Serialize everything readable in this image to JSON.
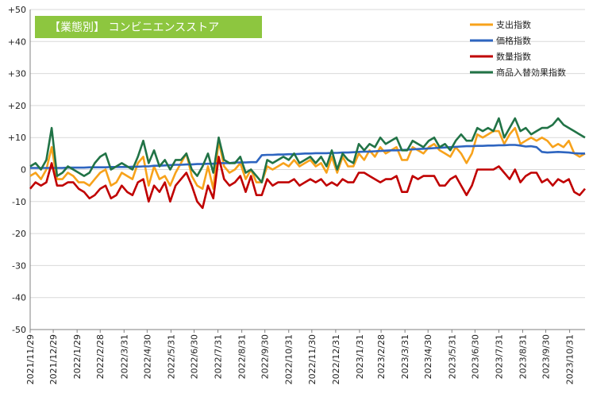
{
  "chart_data": {
    "type": "line",
    "title": "【業態別】 コンビニエンスストア",
    "ylim": [
      -50,
      50
    ],
    "yticks": [
      "+50",
      "+40",
      "+30",
      "+20",
      "+10",
      "0",
      "-10",
      "-20",
      "-30",
      "-40",
      "-50"
    ],
    "x_dates": [
      "2021/11/29",
      "2021/12/6",
      "2021/12/13",
      "2021/12/20",
      "2021/12/27",
      "2022/1/3",
      "2022/1/10",
      "2022/1/17",
      "2022/1/24",
      "2022/1/31",
      "2022/2/7",
      "2022/2/14",
      "2022/2/21",
      "2022/2/28",
      "2022/3/7",
      "2022/3/14",
      "2022/3/21",
      "2022/3/28",
      "2022/4/4",
      "2022/4/11",
      "2022/4/18",
      "2022/4/25",
      "2022/5/2",
      "2022/5/9",
      "2022/5/16",
      "2022/5/23",
      "2022/5/30",
      "2022/6/6",
      "2022/6/13",
      "2022/6/20",
      "2022/6/27",
      "2022/7/4",
      "2022/7/11",
      "2022/7/18",
      "2022/7/25",
      "2022/8/1",
      "2022/8/8",
      "2022/8/15",
      "2022/8/22",
      "2022/8/29",
      "2022/9/5",
      "2022/9/12",
      "2022/9/19",
      "2022/9/26",
      "2022/10/3",
      "2022/10/10",
      "2022/10/17",
      "2022/10/24",
      "2022/10/31",
      "2022/11/7",
      "2022/11/14",
      "2022/11/21",
      "2022/11/28",
      "2022/12/5",
      "2022/12/12",
      "2022/12/19",
      "2022/12/26",
      "2023/1/2",
      "2023/1/9",
      "2023/1/16",
      "2023/1/23",
      "2023/1/30",
      "2023/2/6",
      "2023/2/13",
      "2023/2/20",
      "2023/2/27",
      "2023/3/6",
      "2023/3/13",
      "2023/3/20",
      "2023/3/27",
      "2023/4/3",
      "2023/4/10",
      "2023/4/17",
      "2023/4/24",
      "2023/5/1",
      "2023/5/8",
      "2023/5/15",
      "2023/5/22",
      "2023/5/29",
      "2023/6/5",
      "2023/6/12",
      "2023/6/19",
      "2023/6/26",
      "2023/7/3",
      "2023/7/10",
      "2023/7/17",
      "2023/7/24",
      "2023/7/31",
      "2023/8/7",
      "2023/8/14",
      "2023/8/21",
      "2023/8/28",
      "2023/9/4",
      "2023/9/11",
      "2023/9/18",
      "2023/9/25",
      "2023/10/2",
      "2023/10/9",
      "2023/10/16",
      "2023/10/23",
      "2023/10/30",
      "2023/11/6",
      "2023/11/13",
      "2023/11/20"
    ],
    "x_tick_labels": [
      "2021/11/29",
      "2021/12/29",
      "2022/1/29",
      "2022/2/28",
      "2022/3/31",
      "2022/4/30",
      "2022/5/31",
      "2022/6/30",
      "2022/7/31",
      "2022/8/31",
      "2022/9/30",
      "2022/10/31",
      "2022/11/30",
      "2022/12/31",
      "2023/1/31",
      "2023/2/28",
      "2023/3/31",
      "2023/4/30",
      "2023/5/31",
      "2023/6/30",
      "2023/7/31",
      "2023/8/31",
      "2023/9/30",
      "2023/10/31"
    ],
    "series": [
      {
        "name": "支出指数",
        "color": "#f7a21b",
        "values": [
          -2,
          -1,
          -3,
          0,
          7,
          -3,
          -3,
          -1,
          -2,
          -4,
          -4,
          -5,
          -3,
          -1,
          0,
          -5,
          -4,
          -1,
          -2,
          -3,
          2,
          4,
          -5,
          1,
          -3,
          -2,
          -5,
          -1,
          2,
          5,
          -2,
          -5,
          -6,
          1,
          -6,
          9,
          1,
          -1,
          0,
          2,
          -3,
          0,
          -4,
          -4,
          1,
          0,
          1,
          2,
          1,
          3,
          1,
          2,
          3,
          1,
          2,
          -1,
          4,
          -1,
          4,
          1,
          1,
          5,
          3,
          6,
          4,
          7,
          5,
          6,
          7,
          3,
          3,
          7,
          6,
          5,
          7,
          8,
          6,
          5,
          4,
          7,
          5,
          2,
          5,
          11,
          10,
          11,
          12,
          12,
          8,
          11,
          13,
          8,
          9,
          10,
          9,
          10,
          9,
          7,
          8,
          7,
          9,
          5,
          4,
          5
        ]
      },
      {
        "name": "価格指数",
        "color": "#2e65c0",
        "values": [
          0.5,
          0.5,
          0.5,
          0.5,
          0.5,
          0.5,
          0.5,
          0.6,
          0.6,
          0.6,
          0.6,
          0.7,
          0.7,
          0.7,
          0.7,
          0.8,
          0.8,
          0.8,
          0.8,
          0.9,
          0.9,
          1,
          1,
          1.2,
          1.2,
          1.3,
          1.4,
          1.5,
          1.5,
          1.6,
          1.6,
          1.7,
          1.7,
          1.8,
          1.8,
          2,
          2,
          2,
          2.2,
          2.2,
          2.2,
          2.3,
          2.3,
          4.5,
          4.6,
          4.6,
          4.7,
          4.7,
          4.8,
          4.8,
          4.9,
          5,
          5,
          5.1,
          5.1,
          5.1,
          5.2,
          5.2,
          5.3,
          5.3,
          5.4,
          5.5,
          5.6,
          5.6,
          5.7,
          5.8,
          5.9,
          6,
          6,
          6.1,
          6.2,
          6.3,
          6.4,
          6.5,
          6.6,
          6.7,
          6.8,
          6.9,
          7,
          7.1,
          7.2,
          7.3,
          7.3,
          7.4,
          7.4,
          7.5,
          7.5,
          7.6,
          7.6,
          7.7,
          7.7,
          7.5,
          7.2,
          7.3,
          7,
          5.5,
          5.3,
          5.4,
          5.5,
          5.4,
          5.3,
          5.1,
          5,
          5
        ]
      },
      {
        "name": "数量指数",
        "color": "#c00000",
        "values": [
          -6,
          -4,
          -5,
          -4,
          2,
          -5,
          -5,
          -4,
          -4,
          -6,
          -7,
          -9,
          -8,
          -6,
          -5,
          -9,
          -8,
          -5,
          -7,
          -8,
          -4,
          -3,
          -10,
          -5,
          -7,
          -4,
          -10,
          -5,
          -3,
          -1,
          -5,
          -10,
          -12,
          -5,
          -9,
          4,
          -3,
          -5,
          -4,
          -2,
          -7,
          -2,
          -8,
          -8,
          -3,
          -5,
          -4,
          -4,
          -4,
          -3,
          -5,
          -4,
          -3,
          -4,
          -3,
          -5,
          -4,
          -5,
          -3,
          -4,
          -4,
          -1,
          -1,
          -2,
          -3,
          -4,
          -3,
          -3,
          -2,
          -7,
          -7,
          -2,
          -3,
          -2,
          -2,
          -2,
          -5,
          -5,
          -3,
          -2,
          -5,
          -8,
          -5,
          0,
          0,
          0,
          0,
          1,
          -1,
          -3,
          0,
          -4,
          -2,
          -1,
          -1,
          -4,
          -3,
          -5,
          -3,
          -4,
          -3,
          -7,
          -8,
          -6
        ]
      },
      {
        "name": "商品入替効果指数",
        "color": "#217346",
        "values": [
          1,
          2,
          0,
          3,
          13,
          -2,
          -1,
          1,
          0,
          -1,
          -2,
          -1,
          2,
          4,
          5,
          0,
          1,
          2,
          1,
          0,
          4,
          9,
          2,
          6,
          1,
          3,
          0,
          3,
          3,
          5,
          0,
          -2,
          1,
          5,
          -1,
          10,
          3,
          2,
          2,
          4,
          -1,
          0,
          -2,
          -4,
          3,
          2,
          3,
          4,
          3,
          5,
          2,
          3,
          4,
          2,
          4,
          1,
          6,
          0,
          5,
          3,
          2,
          8,
          6,
          8,
          7,
          10,
          8,
          9,
          10,
          6,
          6,
          9,
          8,
          7,
          9,
          10,
          7,
          8,
          6,
          9,
          11,
          9,
          9,
          13,
          12,
          13,
          12,
          16,
          10,
          13,
          16,
          12,
          13,
          11,
          12,
          13,
          13,
          14,
          16,
          14,
          13,
          12,
          11,
          10
        ]
      }
    ]
  }
}
